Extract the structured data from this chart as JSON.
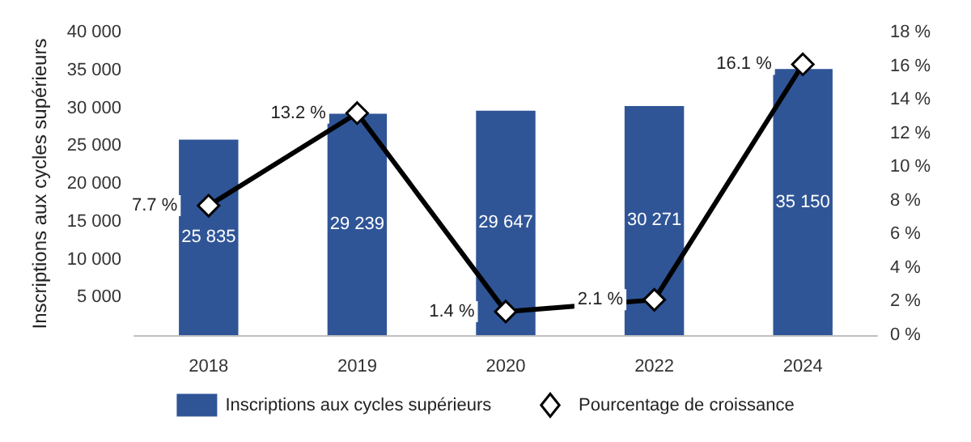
{
  "chart_data": {
    "type": "bar",
    "categories": [
      "2018",
      "2019",
      "2020",
      "2022",
      "2024"
    ],
    "ylabel": "Inscriptions aux cycles supérieurs",
    "series": [
      {
        "name": "Inscriptions aux cycles supérieurs",
        "color": "#2f5597",
        "values": [
          25835,
          29239,
          29647,
          30271,
          35150
        ],
        "value_labels": [
          "25 835",
          "29 239",
          "29 647",
          "30 271",
          "35 150"
        ]
      },
      {
        "name": "Pourcentage de croissance",
        "type": "line",
        "axis": "y2",
        "color": "#000000",
        "marker": "diamond",
        "values": [
          7.7,
          13.2,
          1.4,
          2.1,
          16.1
        ],
        "value_labels": [
          "7.7 %",
          "13.2 %",
          "1.4 %",
          "2.1 %",
          "16.1 %"
        ]
      }
    ],
    "ylim": [
      0,
      40000
    ],
    "yticks": [
      {
        "value": 0,
        "label": null
      },
      {
        "value": 5000,
        "label": "5 000"
      },
      {
        "value": 10000,
        "label": "10 000"
      },
      {
        "value": 15000,
        "label": "15 000"
      },
      {
        "value": 20000,
        "label": "20 000"
      },
      {
        "value": 25000,
        "label": "25 000"
      },
      {
        "value": 30000,
        "label": "30 000"
      },
      {
        "value": 35000,
        "label": "35 000"
      },
      {
        "value": 40000,
        "label": "40 000"
      }
    ],
    "y2lim": [
      0,
      18
    ],
    "y2ticks": [
      {
        "value": 0,
        "label": "0 %"
      },
      {
        "value": 2,
        "label": "2 %"
      },
      {
        "value": 4,
        "label": "4 %"
      },
      {
        "value": 6,
        "label": "6 %"
      },
      {
        "value": 8,
        "label": "8 %"
      },
      {
        "value": 10,
        "label": "10 %"
      },
      {
        "value": 12,
        "label": "12 %"
      },
      {
        "value": 14,
        "label": "14 %"
      },
      {
        "value": 16,
        "label": "16 %"
      },
      {
        "value": 18,
        "label": "18 %"
      }
    ],
    "legend": "bottom",
    "grid": false
  }
}
